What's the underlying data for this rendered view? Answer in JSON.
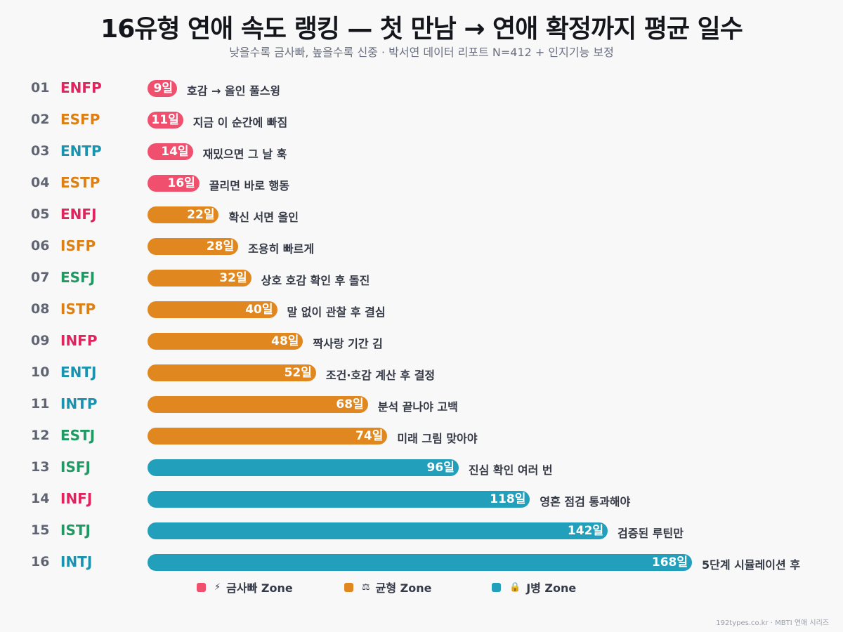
{
  "title": "16유형 연애 속도 랭킹 — 첫 만남 → 연애 확정까지 평균 일수",
  "subtitle": "낮을수록 금사빠, 높을수록 신중 · 박서연 데이터 리포트 N=412 + 인지기능 보정",
  "footer": "192types.co.kr · MBTI 연애 시리즈",
  "colors": {
    "zone_fast": "#f0506e",
    "zone_balanced": "#e0871f",
    "zone_j": "#229fbb",
    "type_NF": "#e0245e",
    "type_SP": "#dc7f14",
    "type_NT": "#1a93b0",
    "type_SJ": "#1f9a63"
  },
  "chart_data": {
    "type": "bar",
    "orientation": "horizontal",
    "title": "16유형 연애 속도 랭킹 — 첫 만남 → 연애 확정까지 평균 일수",
    "unit_suffix": "일",
    "xlim": [
      0,
      168
    ],
    "grid": false,
    "legend_placement": "bottom",
    "legend": [
      {
        "icon": "lightning-icon",
        "icon_glyph": "⚡",
        "label": "금사빠 Zone",
        "zone": "fast"
      },
      {
        "icon": "scales-icon",
        "icon_glyph": "⚖",
        "label": "균형 Zone",
        "zone": "balanced"
      },
      {
        "icon": "lock-icon",
        "icon_glyph": "🔒",
        "label": "J병 Zone",
        "zone": "j"
      }
    ],
    "rows": [
      {
        "rank": "01",
        "type": "ENFP",
        "group": "NF",
        "value": 9,
        "label": "9일",
        "zone": "fast",
        "note": "호감 → 올인 풀스윙"
      },
      {
        "rank": "02",
        "type": "ESFP",
        "group": "SP",
        "value": 11,
        "label": "11일",
        "zone": "fast",
        "note": "지금 이 순간에 빠짐"
      },
      {
        "rank": "03",
        "type": "ENTP",
        "group": "NT",
        "value": 14,
        "label": "14일",
        "zone": "fast",
        "note": "재밌으면 그 날 훅"
      },
      {
        "rank": "04",
        "type": "ESTP",
        "group": "SP",
        "value": 16,
        "label": "16일",
        "zone": "fast",
        "note": "끌리면 바로 행동"
      },
      {
        "rank": "05",
        "type": "ENFJ",
        "group": "NF",
        "value": 22,
        "label": "22일",
        "zone": "balanced",
        "note": "확신 서면 올인"
      },
      {
        "rank": "06",
        "type": "ISFP",
        "group": "SP",
        "value": 28,
        "label": "28일",
        "zone": "balanced",
        "note": "조용히 빠르게"
      },
      {
        "rank": "07",
        "type": "ESFJ",
        "group": "SJ",
        "value": 32,
        "label": "32일",
        "zone": "balanced",
        "note": "상호 호감 확인 후 돌진"
      },
      {
        "rank": "08",
        "type": "ISTP",
        "group": "SP",
        "value": 40,
        "label": "40일",
        "zone": "balanced",
        "note": "말 없이 관찰 후 결심"
      },
      {
        "rank": "09",
        "type": "INFP",
        "group": "NF",
        "value": 48,
        "label": "48일",
        "zone": "balanced",
        "note": "짝사랑 기간 김"
      },
      {
        "rank": "10",
        "type": "ENTJ",
        "group": "NT",
        "value": 52,
        "label": "52일",
        "zone": "balanced",
        "note": "조건·호감 계산 후 결정"
      },
      {
        "rank": "11",
        "type": "INTP",
        "group": "NT",
        "value": 68,
        "label": "68일",
        "zone": "balanced",
        "note": "분석 끝나야 고백"
      },
      {
        "rank": "12",
        "type": "ESTJ",
        "group": "SJ",
        "value": 74,
        "label": "74일",
        "zone": "balanced",
        "note": "미래 그림 맞아야"
      },
      {
        "rank": "13",
        "type": "ISFJ",
        "group": "SJ",
        "value": 96,
        "label": "96일",
        "zone": "j",
        "note": "진심 확인 여러 번"
      },
      {
        "rank": "14",
        "type": "INFJ",
        "group": "NF",
        "value": 118,
        "label": "118일",
        "zone": "j",
        "note": "영혼 점검 통과해야"
      },
      {
        "rank": "15",
        "type": "ISTJ",
        "group": "SJ",
        "value": 142,
        "label": "142일",
        "zone": "j",
        "note": "검증된 루틴만"
      },
      {
        "rank": "16",
        "type": "INTJ",
        "group": "NT",
        "value": 168,
        "label": "168일",
        "zone": "j",
        "note": "5단계 시뮬레이션 후"
      }
    ]
  }
}
